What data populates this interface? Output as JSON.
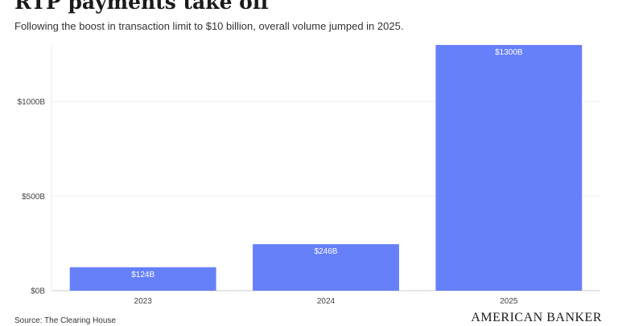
{
  "header": {
    "title": "RTP payments take off",
    "subtitle": "Following the boost in transaction limit to $10 billion, overall volume jumped in 2025."
  },
  "footer": {
    "source": "Source: The Clearing House",
    "brand": "AMERICAN BANKER"
  },
  "colors": {
    "bar": "#6680fa",
    "grid": "#eeeeee",
    "axis": "#cccccc"
  },
  "chart_data": {
    "type": "bar",
    "title": "RTP payments take off",
    "subtitle": "Following the boost in transaction limit to $10 billion, overall volume jumped in 2025.",
    "categories": [
      "2023",
      "2024",
      "2025"
    ],
    "values": [
      124,
      246,
      1300
    ],
    "data_labels": [
      "$124B",
      "$246B",
      "$1300B"
    ],
    "y_ticks": [
      0,
      500,
      1000
    ],
    "y_tick_labels": [
      "$0B",
      "$500B",
      "$1000B"
    ],
    "ylim": [
      0,
      1300
    ],
    "grid": true,
    "legend": "none"
  }
}
